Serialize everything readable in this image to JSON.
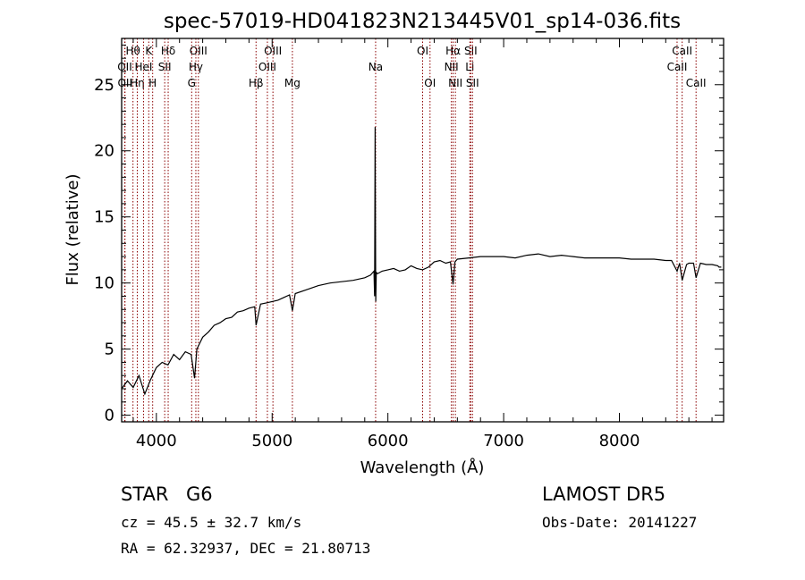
{
  "chart_data": {
    "type": "line",
    "title": "spec-57019-HD041823N213445V01_sp14-036.fits",
    "xlabel": "Wavelength (Å)",
    "ylabel": "Flux (relative)",
    "xlim": [
      3700,
      8900
    ],
    "ylim": [
      -0.5,
      28.5
    ],
    "x_ticks": [
      4000,
      5000,
      6000,
      7000,
      8000
    ],
    "y_ticks": [
      0,
      5,
      10,
      15,
      20,
      25
    ],
    "grid": false,
    "series": [
      {
        "color": "#000000",
        "x": [
          3700,
          3750,
          3800,
          3850,
          3900,
          3950,
          4000,
          4050,
          4100,
          4150,
          4200,
          4250,
          4300,
          4330,
          4350,
          4400,
          4450,
          4500,
          4550,
          4600,
          4650,
          4700,
          4750,
          4800,
          4850,
          4861,
          4900,
          4950,
          5000,
          5050,
          5100,
          5150,
          5175,
          5200,
          5300,
          5400,
          5500,
          5600,
          5700,
          5800,
          5850,
          5880,
          5885,
          5890,
          5895,
          5900,
          5910,
          5950,
          6000,
          6050,
          6100,
          6150,
          6200,
          6250,
          6300,
          6350,
          6400,
          6450,
          6500,
          6540,
          6563,
          6580,
          6600,
          6700,
          6800,
          6900,
          7000,
          7100,
          7200,
          7300,
          7400,
          7500,
          7600,
          7700,
          7800,
          7900,
          8000,
          8100,
          8200,
          8300,
          8400,
          8450,
          8498,
          8520,
          8542,
          8580,
          8600,
          8640,
          8662,
          8700,
          8750,
          8800,
          8850,
          8860,
          8870,
          8880
        ],
        "y": [
          2.0,
          2.6,
          2.1,
          3.0,
          1.6,
          2.7,
          3.6,
          4.0,
          3.8,
          4.6,
          4.2,
          4.8,
          4.6,
          2.8,
          5.0,
          5.9,
          6.3,
          6.8,
          7.0,
          7.3,
          7.4,
          7.8,
          7.9,
          8.1,
          8.2,
          6.8,
          8.4,
          8.5,
          8.6,
          8.7,
          8.9,
          9.1,
          7.9,
          9.2,
          9.5,
          9.8,
          10.0,
          10.1,
          10.2,
          10.4,
          10.6,
          10.9,
          9.0,
          21.8,
          8.6,
          10.8,
          10.7,
          10.9,
          11.0,
          11.1,
          10.9,
          11.0,
          11.3,
          11.1,
          11.0,
          11.2,
          11.6,
          11.7,
          11.5,
          11.6,
          9.9,
          11.6,
          11.8,
          11.9,
          12.0,
          12.0,
          12.0,
          11.9,
          12.1,
          12.2,
          12.0,
          12.1,
          12.0,
          11.9,
          11.9,
          11.9,
          11.9,
          11.8,
          11.8,
          11.8,
          11.7,
          11.7,
          10.9,
          11.5,
          10.2,
          11.4,
          11.5,
          11.5,
          10.4,
          11.5,
          11.4,
          11.4,
          11.3,
          11.2,
          11.2,
          11.2
        ]
      }
    ],
    "line_color": "#8b0000",
    "lines": [
      {
        "label": "Hθ",
        "x": 3798,
        "row": 0
      },
      {
        "label": "OII",
        "x": 3727,
        "row": 1
      },
      {
        "label": "OII",
        "x": 3729,
        "row": 2
      },
      {
        "label": "Hη",
        "x": 3835,
        "row": 2
      },
      {
        "label": "K",
        "x": 3934,
        "row": 0
      },
      {
        "label": "HeI",
        "x": 3889,
        "row": 1
      },
      {
        "label": "H",
        "x": 3968,
        "row": 2
      },
      {
        "label": "Hδ",
        "x": 4102,
        "row": 0
      },
      {
        "label": "SII",
        "x": 4072,
        "row": 1
      },
      {
        "label": "OIII",
        "x": 4363,
        "row": 0
      },
      {
        "label": "Hγ",
        "x": 4341,
        "row": 1
      },
      {
        "label": "G",
        "x": 4305,
        "row": 2
      },
      {
        "label": "OIII",
        "x": 5007,
        "row": 0
      },
      {
        "label": "OIII",
        "x": 4959,
        "row": 1
      },
      {
        "label": "Hβ",
        "x": 4861,
        "row": 2
      },
      {
        "label": "Mg",
        "x": 5175,
        "row": 2
      },
      {
        "label": "Na",
        "x": 5894,
        "row": 1
      },
      {
        "label": "OI",
        "x": 6300,
        "row": 0
      },
      {
        "label": "OI",
        "x": 6364,
        "row": 2
      },
      {
        "label": "Hα",
        "x": 6563,
        "row": 0
      },
      {
        "label": "NII",
        "x": 6548,
        "row": 1
      },
      {
        "label": "NII",
        "x": 6583,
        "row": 2
      },
      {
        "label": "SII",
        "x": 6716,
        "row": 0
      },
      {
        "label": "Li",
        "x": 6708,
        "row": 1
      },
      {
        "label": "SII",
        "x": 6731,
        "row": 2
      },
      {
        "label": "CaII",
        "x": 8542,
        "row": 0
      },
      {
        "label": "CaII",
        "x": 8498,
        "row": 1
      },
      {
        "label": "CaII",
        "x": 8662,
        "row": 2
      }
    ]
  },
  "info": {
    "object_type": "STAR",
    "subclass": "G6",
    "survey": "LAMOST DR5",
    "cz": "cz = 45.5 ± 32.7 km/s",
    "obs_date": "Obs-Date: 20141227",
    "coords": "RA =  62.32937, DEC =  21.80713"
  }
}
